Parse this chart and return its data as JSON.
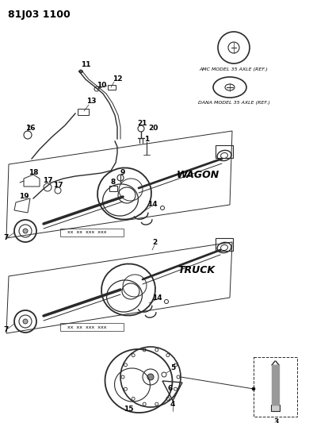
{
  "title": "81J03 1100",
  "background_color": "#ffffff",
  "fig_width": 3.95,
  "fig_height": 5.33,
  "dpi": 100,
  "wagon_label": "WAGON",
  "truck_label": "TRUCK",
  "amc_label": "AMC MODEL 35 AXLE (REF.)",
  "dana_label": "DANA MODEL 35 AXLE (REF.)",
  "line_color": "#2a2a2a",
  "title_font_size": 9
}
